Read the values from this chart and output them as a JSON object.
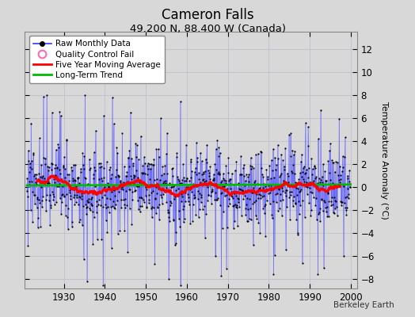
{
  "title": "Cameron Falls",
  "subtitle": "49.200 N, 88.400 W (Canada)",
  "ylabel": "Temperature Anomaly (°C)",
  "watermark": "Berkeley Earth",
  "xlim": [
    1920.5,
    2001.5
  ],
  "ylim": [
    -8.8,
    13.5
  ],
  "yticks": [
    -8,
    -6,
    -4,
    -2,
    0,
    2,
    4,
    6,
    8,
    10,
    12
  ],
  "xticks": [
    1930,
    1940,
    1950,
    1960,
    1970,
    1980,
    1990,
    2000
  ],
  "start_year": 1921,
  "end_year": 2000,
  "seed": 12345,
  "line_color": "#3333FF",
  "stem_color": "#8888FF",
  "dot_color": "#000000",
  "moving_avg_color": "#FF0000",
  "trend_color": "#00BB00",
  "background_color": "#D8D8D8",
  "plot_bg_color": "#D8D8D8",
  "grid_color": "#BBBBCC",
  "legend_items": [
    "Raw Monthly Data",
    "Quality Control Fail",
    "Five Year Moving Average",
    "Long-Term Trend"
  ]
}
